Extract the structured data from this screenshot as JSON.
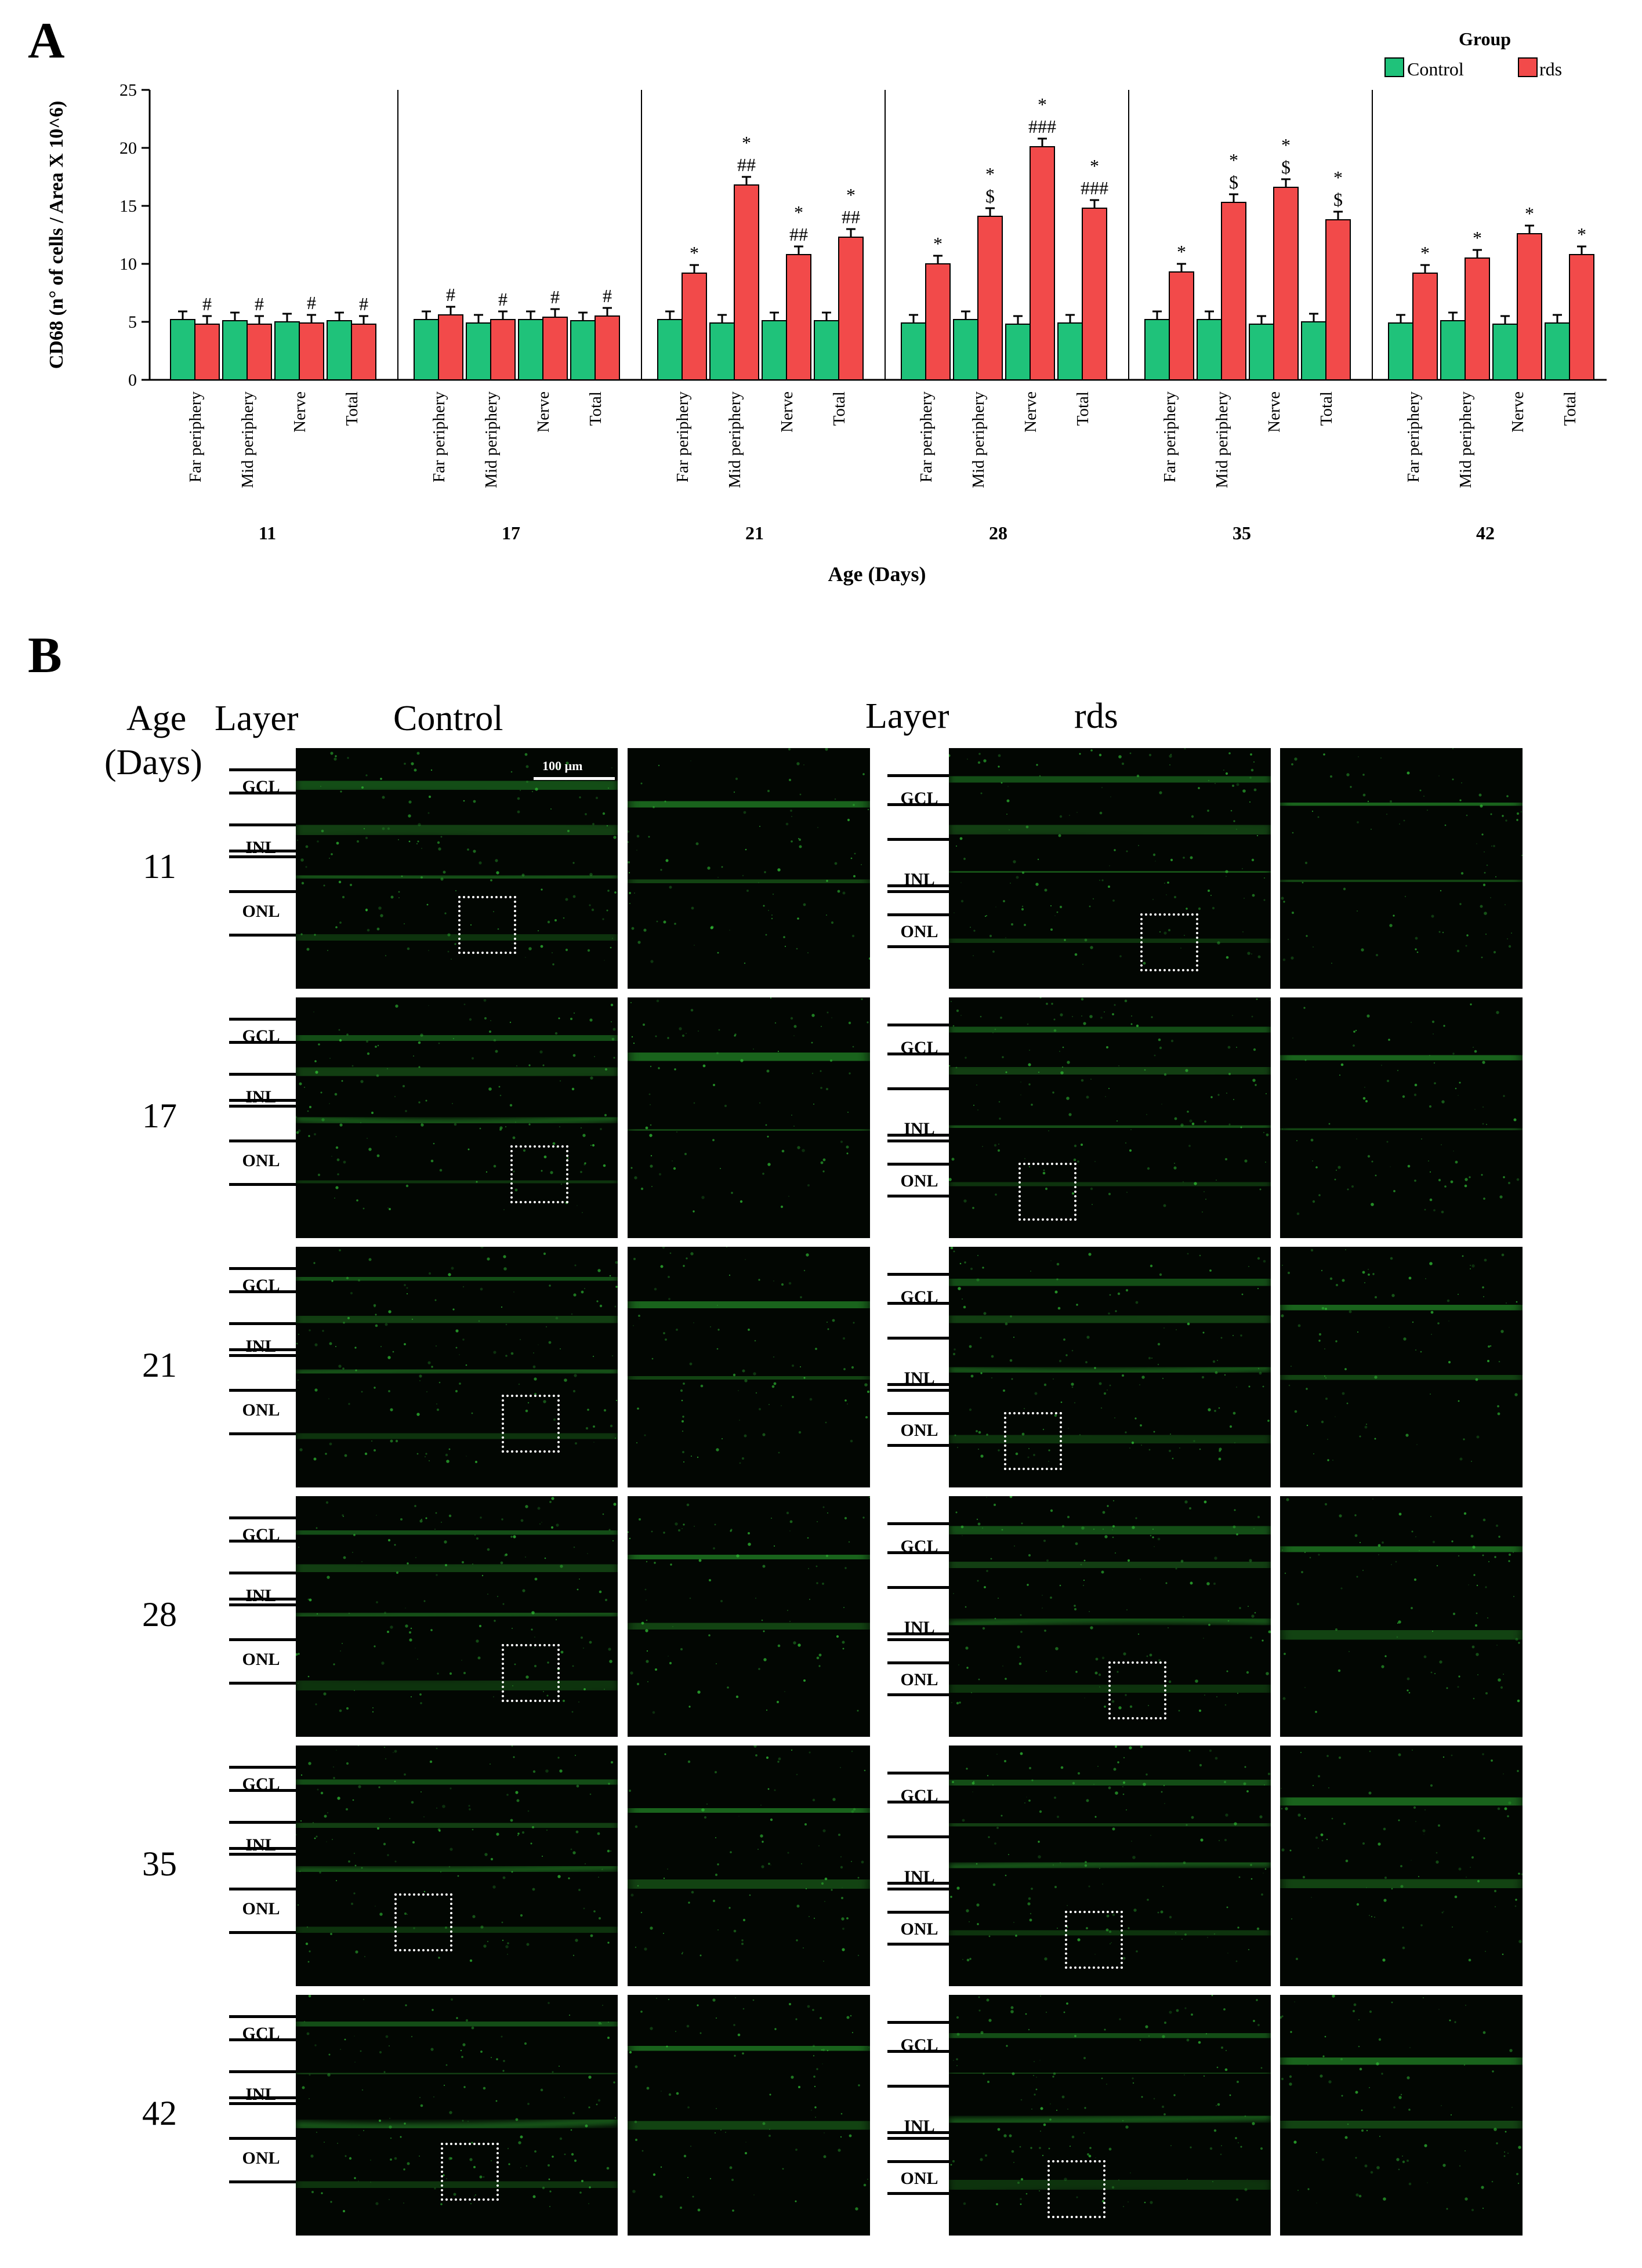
{
  "panels": {
    "a": "A",
    "b": "B"
  },
  "colors": {
    "control": "#1fc27a",
    "rds": "#f24a4a",
    "signal": "#36d23a"
  },
  "chart_data": {
    "type": "bar",
    "ylabel": "CD68 (n° of cells / Area X 10^6)",
    "xlabel": "Age (Days)",
    "ylim": [
      0,
      25
    ],
    "yticks": [
      0,
      5,
      10,
      15,
      20,
      25
    ],
    "legend": {
      "title": "Group",
      "placement": "top-right"
    },
    "series": [
      {
        "name": "Control"
      },
      {
        "name": "rds"
      }
    ],
    "categories": [
      "Far periphery",
      "Mid periphery",
      "Nerve",
      "Total"
    ],
    "groups": [
      {
        "age": "11",
        "control": [
          5.2,
          5.1,
          5.0,
          5.1
        ],
        "rds": [
          4.8,
          4.8,
          4.9,
          4.8
        ],
        "marks": [
          "#",
          "#",
          "#",
          "#"
        ]
      },
      {
        "age": "17",
        "control": [
          5.2,
          4.9,
          5.2,
          5.1
        ],
        "rds": [
          5.6,
          5.2,
          5.4,
          5.5
        ],
        "marks": [
          "#",
          "#",
          "#",
          "#"
        ]
      },
      {
        "age": "21",
        "control": [
          5.2,
          4.9,
          5.1,
          5.1
        ],
        "rds": [
          9.2,
          16.8,
          10.8,
          12.3
        ],
        "marks": [
          "*",
          "*\n##",
          "*\n##",
          "*\n##"
        ]
      },
      {
        "age": "28",
        "control": [
          4.9,
          5.2,
          4.8,
          4.9
        ],
        "rds": [
          10.0,
          14.1,
          20.1,
          14.8
        ],
        "marks": [
          "*",
          "*\n$",
          "*\n###",
          "*\n###"
        ]
      },
      {
        "age": "35",
        "control": [
          5.2,
          5.2,
          4.8,
          5.0
        ],
        "rds": [
          9.3,
          15.3,
          16.6,
          13.8
        ],
        "marks": [
          "*",
          "*\n$",
          "*\n$",
          "*\n$"
        ]
      },
      {
        "age": "42",
        "control": [
          4.9,
          5.1,
          4.8,
          4.9
        ],
        "rds": [
          9.2,
          10.5,
          12.6,
          10.8
        ],
        "marks": [
          "*",
          "*",
          "*",
          "*"
        ]
      }
    ]
  },
  "panel_b": {
    "header": {
      "age": "Age",
      "days": "(Days)",
      "layer_left": "Layer",
      "control": "Control",
      "layer_right": "Layer",
      "rds": "rds"
    },
    "scale_bar": "100 µm",
    "layers": [
      "GCL",
      "INL",
      "ONL"
    ],
    "ages": [
      "11",
      "17",
      "21",
      "28",
      "35",
      "42"
    ]
  }
}
